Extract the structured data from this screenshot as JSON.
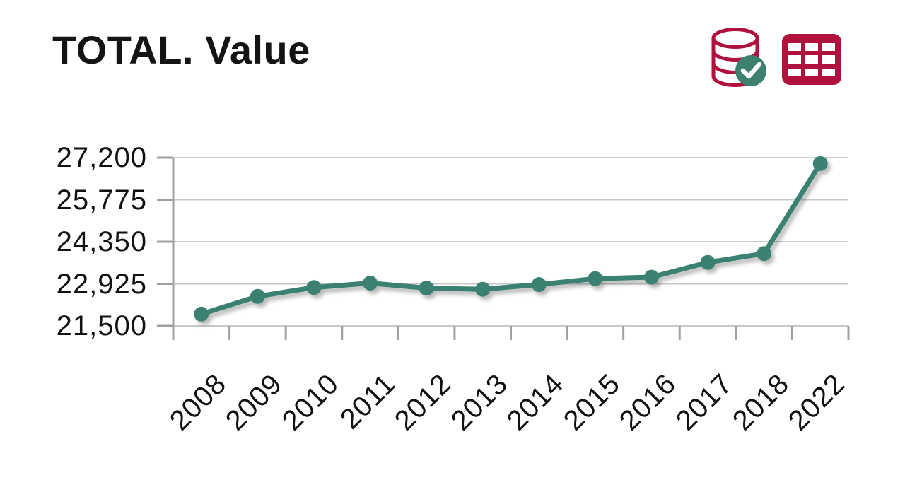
{
  "header": {
    "title": "TOTAL. Value"
  },
  "toolbar": {
    "icons": [
      {
        "name": "database-check-icon",
        "meaning": "data source validated"
      },
      {
        "name": "table-grid-icon",
        "meaning": "show data table"
      }
    ]
  },
  "colors": {
    "series_teal": "#3a8171",
    "check_green": "#3d8070",
    "crimson": "#b0123d",
    "grid_gray": "#c9c9c9",
    "tick_gray": "#a0a0a0",
    "text_black": "#111111"
  },
  "chart_data": {
    "type": "line",
    "title": "TOTAL. Value",
    "categories": [
      "2008",
      "2009",
      "2010",
      "2011",
      "2012",
      "2013",
      "2014",
      "2015",
      "2016",
      "2017",
      "2018",
      "2022"
    ],
    "series": [
      {
        "name": "TOTAL",
        "values": [
          21900,
          22500,
          22800,
          22950,
          22780,
          22740,
          22900,
          23100,
          23150,
          23650,
          23950,
          27000
        ]
      }
    ],
    "ylim": [
      21500,
      27200
    ],
    "yticks": [
      21500,
      22925,
      24350,
      25775,
      27200
    ],
    "ytick_labels": [
      "21,500",
      "22,925",
      "24,350",
      "25,775",
      "27,200"
    ],
    "xlabel": "",
    "ylabel": "",
    "grid": "horizontal",
    "legend": "none",
    "x_tick_rotation": -45,
    "marker": "circle"
  }
}
